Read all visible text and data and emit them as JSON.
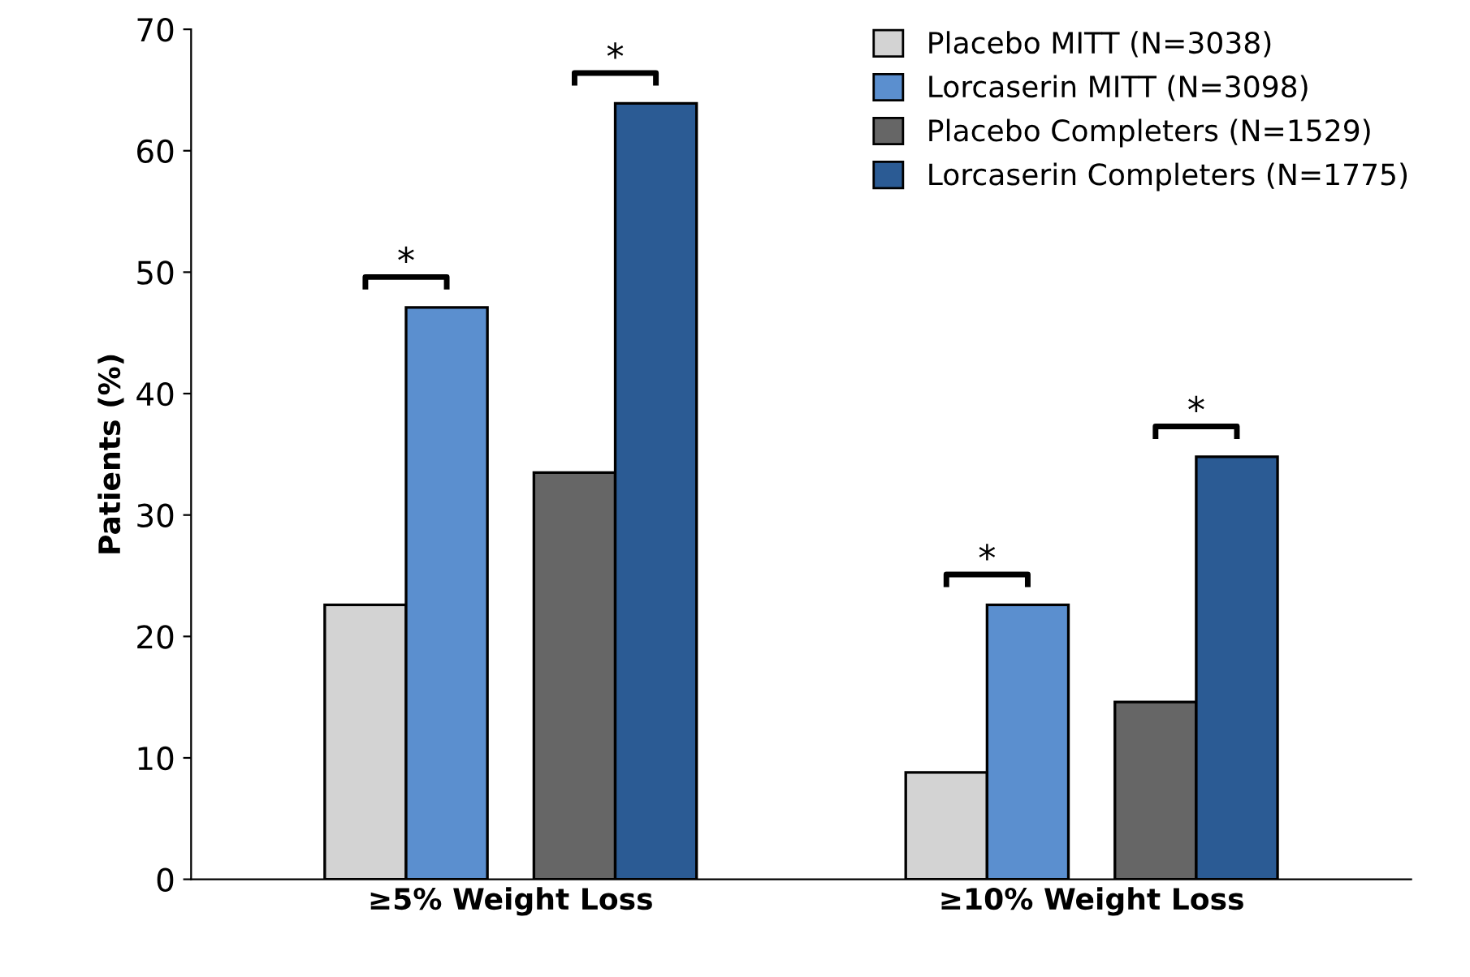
{
  "chart_data": {
    "type": "bar",
    "ylabel": "Patients (%)",
    "categories": [
      "≥5% Weight Loss",
      "≥10% Weight Loss"
    ],
    "series": [
      {
        "name": "Placebo MITT (N=3038)",
        "color": "#d3d3d3",
        "values": [
          22.6,
          8.8
        ]
      },
      {
        "name": "Lorcaserin MITT (N=3098)",
        "color": "#5b8fcf",
        "values": [
          47.1,
          22.6
        ]
      },
      {
        "name": "Placebo Completers (N=1529)",
        "color": "#666666",
        "values": [
          33.5,
          14.6
        ]
      },
      {
        "name": "Lorcaserin Completers (N=1775)",
        "color": "#2b5b94",
        "values": [
          63.9,
          34.8
        ]
      }
    ],
    "ylim": [
      0,
      70
    ],
    "yticks": [
      0,
      10,
      20,
      30,
      40,
      50,
      60,
      70
    ],
    "annotations": [
      "*",
      "*",
      "*",
      "*"
    ],
    "grid": false,
    "legend": "top right"
  }
}
